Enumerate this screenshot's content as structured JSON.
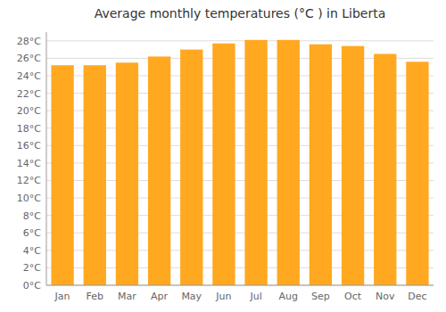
{
  "chart_data": {
    "type": "bar",
    "title": "Average monthly temperatures (°C ) in Liberta",
    "categories": [
      "Jan",
      "Feb",
      "Mar",
      "Apr",
      "May",
      "Jun",
      "Jul",
      "Aug",
      "Sep",
      "Oct",
      "Nov",
      "Dec"
    ],
    "values": [
      25.2,
      25.2,
      25.5,
      26.2,
      27.0,
      27.7,
      28.1,
      28.1,
      27.6,
      27.4,
      26.5,
      25.6
    ],
    "color": "#FFA820",
    "ylim": [
      0,
      29
    ],
    "yticks": [
      {
        "value": 0,
        "label": "0°C"
      },
      {
        "value": 2,
        "label": "2°C"
      },
      {
        "value": 4,
        "label": "4°C"
      },
      {
        "value": 6,
        "label": "6°C"
      },
      {
        "value": 8,
        "label": "8°C"
      },
      {
        "value": 10,
        "label": "10°C"
      },
      {
        "value": 12,
        "label": "12°C"
      },
      {
        "value": 14,
        "label": "14°C"
      },
      {
        "value": 16,
        "label": "16°C"
      },
      {
        "value": 18,
        "label": "18°C"
      },
      {
        "value": 20,
        "label": "20°C"
      },
      {
        "value": 22,
        "label": "22°C"
      },
      {
        "value": 24,
        "label": "24°C"
      },
      {
        "value": 26,
        "label": "26°C"
      },
      {
        "value": 28,
        "label": "28°C"
      }
    ],
    "grid": true
  }
}
